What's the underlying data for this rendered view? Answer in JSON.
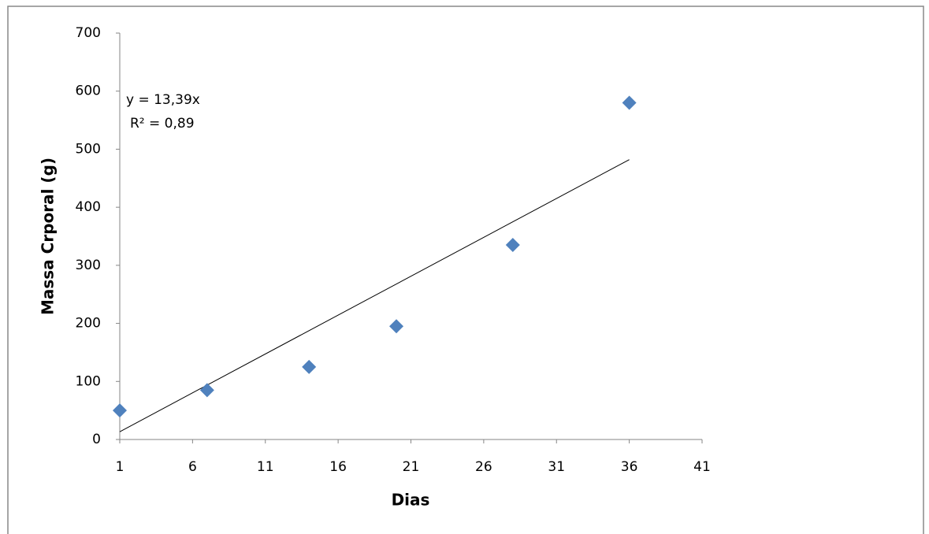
{
  "chart_data": {
    "type": "scatter",
    "x_label": "Dias",
    "y_label": "Massa Crporal (g)",
    "series": [
      {
        "name": "Massa",
        "color": "#4f81bd",
        "x": [
          1,
          7,
          14,
          20,
          28,
          36
        ],
        "values": [
          50,
          85,
          125,
          195,
          335,
          580
        ]
      }
    ],
    "trendline": {
      "slope": 13.39,
      "color": "#000000"
    },
    "annotations": [
      "y = 13,39x",
      "R² = 0,89"
    ],
    "xlim": [
      1,
      41
    ],
    "xticks": [
      1,
      6,
      11,
      16,
      21,
      26,
      31,
      36,
      41
    ],
    "ylim": [
      0,
      700
    ],
    "yticks": [
      0,
      100,
      200,
      300,
      400,
      500,
      600,
      700
    ],
    "grid": false
  }
}
